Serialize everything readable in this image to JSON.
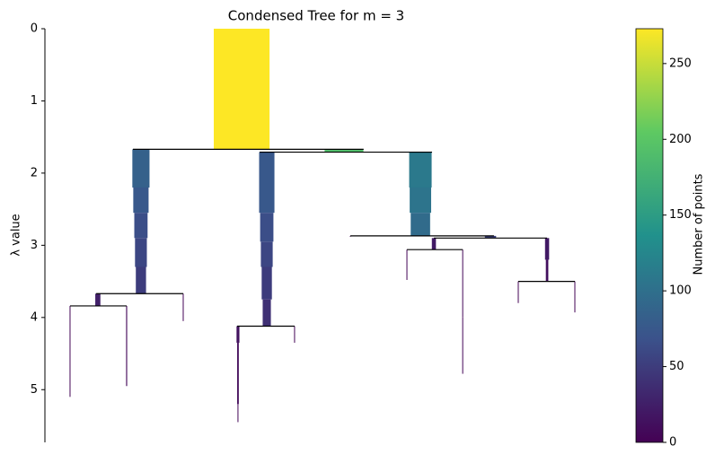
{
  "chart_data": {
    "type": "condensed-tree",
    "title": "Condensed Tree for m = 3",
    "y_label": "λ value",
    "ylim": [
      0,
      5.73
    ],
    "yticks": [
      0,
      1,
      2,
      3,
      4,
      5
    ],
    "y_inverted": true,
    "xlim": [
      0,
      2660
    ],
    "colormap": [
      "#440154",
      "#3b528b",
      "#21918c",
      "#5ec962",
      "#fde725"
    ],
    "clim": [
      0,
      273
    ],
    "cticks": [
      0,
      50,
      100,
      150,
      200,
      250
    ],
    "colorbar_label": "Number of points",
    "branches": [
      {
        "x": 963,
        "segments": [
          [
            0,
            1.67,
            273
          ]
        ]
      },
      {
        "x": 470,
        "segments": [
          [
            1.67,
            2.2,
            84
          ],
          [
            2.2,
            2.55,
            75
          ],
          [
            2.55,
            2.9,
            65
          ],
          [
            2.9,
            3.3,
            58
          ],
          [
            3.3,
            3.67,
            50
          ]
        ]
      },
      {
        "x": 1086,
        "segments": [
          [
            1.71,
            2.55,
            75
          ],
          [
            2.55,
            2.95,
            65
          ],
          [
            2.95,
            3.3,
            58
          ],
          [
            3.3,
            3.75,
            50
          ],
          [
            3.75,
            4.12,
            40
          ]
        ]
      },
      {
        "x": 1464,
        "segments": [
          [
            1.67,
            1.71,
            190
          ]
        ]
      },
      {
        "x": 1838,
        "segments": [
          [
            1.71,
            2.2,
            110
          ],
          [
            2.2,
            2.55,
            105
          ],
          [
            2.55,
            2.87,
            95
          ]
        ]
      },
      {
        "x": 259,
        "segments": [
          [
            3.67,
            3.84,
            25
          ]
        ]
      },
      {
        "x": 677,
        "segments": [
          [
            3.67,
            4.05,
            2
          ]
        ]
      },
      {
        "x": 123,
        "segments": [
          [
            3.84,
            5.1,
            4
          ]
        ]
      },
      {
        "x": 400,
        "segments": [
          [
            3.84,
            4.95,
            5
          ]
        ]
      },
      {
        "x": 945,
        "segments": [
          [
            4.12,
            4.35,
            14
          ],
          [
            4.35,
            5.2,
            8
          ],
          [
            5.2,
            5.45,
            4
          ]
        ]
      },
      {
        "x": 1222,
        "segments": [
          [
            4.12,
            4.35,
            3
          ]
        ]
      },
      {
        "x": 1495,
        "segments": [
          [
            2.87,
            2.88,
            2
          ]
        ]
      },
      {
        "x": 2181,
        "segments": [
          [
            2.87,
            2.9,
            55
          ]
        ]
      },
      {
        "x": 1904,
        "segments": [
          [
            2.9,
            3.06,
            20
          ]
        ]
      },
      {
        "x": 2458,
        "segments": [
          [
            2.9,
            3.2,
            20
          ],
          [
            3.2,
            3.5,
            12
          ]
        ]
      },
      {
        "x": 1772,
        "segments": [
          [
            3.06,
            3.48,
            2
          ]
        ]
      },
      {
        "x": 2045,
        "segments": [
          [
            3.06,
            4.0,
            4
          ],
          [
            4.0,
            4.78,
            2
          ]
        ]
      },
      {
        "x": 2317,
        "segments": [
          [
            3.5,
            3.8,
            2
          ]
        ]
      },
      {
        "x": 2594,
        "segments": [
          [
            3.5,
            3.93,
            3
          ]
        ]
      }
    ],
    "splits": [
      {
        "lambda": 1.67,
        "x": [
          431,
          1560
        ]
      },
      {
        "lambda": 1.71,
        "x": [
          1051,
          1895
        ]
      },
      {
        "lambda": 3.67,
        "x": [
          251,
          677
        ]
      },
      {
        "lambda": 3.84,
        "x": [
          123,
          400
        ]
      },
      {
        "lambda": 4.12,
        "x": [
          941,
          1222
        ]
      },
      {
        "lambda": 2.87,
        "x": [
          1495,
          2198
        ]
      },
      {
        "lambda": 2.9,
        "x": [
          1904,
          2458
        ]
      },
      {
        "lambda": 3.06,
        "x": [
          1772,
          2045
        ]
      },
      {
        "lambda": 3.5,
        "x": [
          2317,
          2594
        ]
      }
    ]
  }
}
